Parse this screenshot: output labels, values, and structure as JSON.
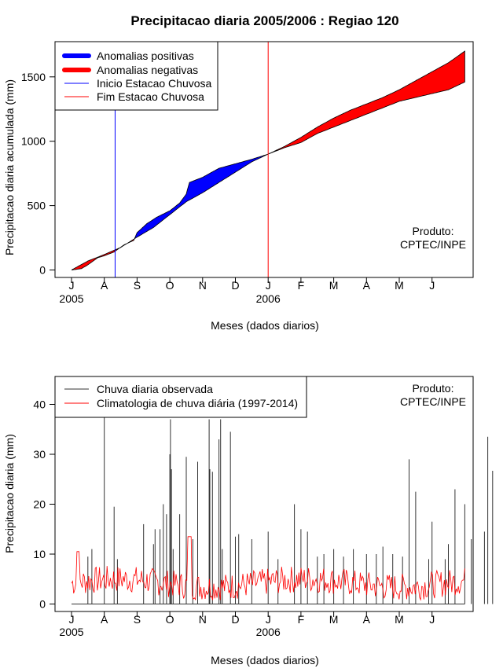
{
  "title": "Precipitacao diaria 2005/2006 : Regiao 120",
  "credit_line1": "Produto:",
  "credit_line2": "CPTEC/INPE",
  "chart_data": [
    {
      "type": "area",
      "ylabel": "Precipitacao diaria acumulada (mm)",
      "xlabel": "Meses (dados diarios)",
      "ylim": [
        0,
        1750
      ],
      "yticks": [
        0,
        500,
        1000,
        1500
      ],
      "x_tick_labels": [
        "J",
        "A",
        "S",
        "O",
        "N",
        "D",
        "J",
        "F",
        "M",
        "A",
        "M",
        "J"
      ],
      "year_labels": [
        "2005",
        "2006"
      ],
      "legend": [
        "Anomalias positivas",
        "Anomalias negativas",
        "Inicio Estacao Chuvosa",
        "Fim Estacao Chuvosa"
      ],
      "colors": {
        "positive": "#0000ff",
        "negative": "#ff0000",
        "onset": "#0000ff",
        "end": "#ff0000"
      },
      "season_onset_month": 1.33,
      "season_end_month": 6.0,
      "observed_accumulated": [
        [
          0,
          0
        ],
        [
          0.3,
          10
        ],
        [
          0.5,
          40
        ],
        [
          0.8,
          95
        ],
        [
          1.0,
          110
        ],
        [
          1.3,
          140
        ],
        [
          1.6,
          195
        ],
        [
          1.9,
          230
        ],
        [
          2.0,
          290
        ],
        [
          2.3,
          360
        ],
        [
          2.6,
          410
        ],
        [
          3.0,
          460
        ],
        [
          3.3,
          520
        ],
        [
          3.5,
          590
        ],
        [
          3.6,
          680
        ],
        [
          4.0,
          720
        ],
        [
          4.5,
          790
        ],
        [
          5.0,
          825
        ],
        [
          5.5,
          860
        ],
        [
          6.0,
          900
        ],
        [
          6.5,
          950
        ],
        [
          7.0,
          990
        ],
        [
          7.5,
          1060
        ],
        [
          8.0,
          1110
        ],
        [
          8.5,
          1160
        ],
        [
          9.0,
          1210
        ],
        [
          9.5,
          1260
        ],
        [
          10.0,
          1310
        ],
        [
          10.5,
          1340
        ],
        [
          11.0,
          1370
        ],
        [
          11.5,
          1400
        ],
        [
          12.0,
          1460
        ]
      ],
      "climatology_accumulated": [
        [
          0,
          0
        ],
        [
          0.5,
          70
        ],
        [
          1.0,
          120
        ],
        [
          1.5,
          175
        ],
        [
          2.0,
          255
        ],
        [
          2.5,
          330
        ],
        [
          3.0,
          430
        ],
        [
          3.5,
          530
        ],
        [
          4.0,
          600
        ],
        [
          4.5,
          680
        ],
        [
          5.0,
          760
        ],
        [
          5.5,
          840
        ],
        [
          6.0,
          900
        ],
        [
          6.5,
          960
        ],
        [
          7.0,
          1030
        ],
        [
          7.5,
          1110
        ],
        [
          8.0,
          1180
        ],
        [
          8.5,
          1240
        ],
        [
          9.0,
          1290
        ],
        [
          9.5,
          1340
        ],
        [
          10.0,
          1400
        ],
        [
          10.5,
          1470
        ],
        [
          11.0,
          1540
        ],
        [
          11.5,
          1610
        ],
        [
          12.0,
          1700
        ]
      ]
    },
    {
      "type": "line",
      "ylabel": "Precipitacao diaria (mm)",
      "xlabel": "Meses (dados diarios)",
      "ylim": [
        0,
        45
      ],
      "yticks": [
        0,
        10,
        20,
        30,
        40
      ],
      "x_tick_labels": [
        "J",
        "A",
        "S",
        "O",
        "N",
        "D",
        "J",
        "F",
        "M",
        "A",
        "M",
        "J"
      ],
      "year_labels": [
        "2005",
        "2006"
      ],
      "legend": [
        "Chuva diaria observada",
        "Climatologia de chuva diária (1997-2014)"
      ],
      "colors": {
        "observed": "#333333",
        "climatology": "#ff0000"
      },
      "observed_peaks": [
        [
          0.5,
          9.5
        ],
        [
          0.62,
          11
        ],
        [
          1.0,
          38
        ],
        [
          1.3,
          19.5
        ],
        [
          1.4,
          9
        ],
        [
          2.2,
          16
        ],
        [
          2.5,
          12
        ],
        [
          2.55,
          15
        ],
        [
          2.7,
          15
        ],
        [
          2.8,
          20
        ],
        [
          2.9,
          18
        ],
        [
          3.0,
          30
        ],
        [
          3.02,
          37
        ],
        [
          3.05,
          27
        ],
        [
          3.1,
          11
        ],
        [
          3.3,
          18
        ],
        [
          3.5,
          29.5
        ],
        [
          3.7,
          13
        ],
        [
          3.85,
          28.5
        ],
        [
          4.2,
          37
        ],
        [
          4.22,
          27
        ],
        [
          4.3,
          26.5
        ],
        [
          4.5,
          33
        ],
        [
          4.55,
          37
        ],
        [
          4.6,
          11
        ],
        [
          4.85,
          34.5
        ],
        [
          5.0,
          13.5
        ],
        [
          5.1,
          14
        ],
        [
          5.5,
          13
        ],
        [
          6.0,
          14.5
        ],
        [
          6.3,
          9
        ],
        [
          6.8,
          20
        ],
        [
          7.0,
          15
        ],
        [
          7.2,
          14.5
        ],
        [
          7.5,
          9.5
        ],
        [
          7.7,
          10
        ],
        [
          8.0,
          11
        ],
        [
          8.3,
          9.5
        ],
        [
          8.6,
          11
        ],
        [
          9.0,
          10
        ],
        [
          9.3,
          10
        ],
        [
          9.5,
          11.5
        ],
        [
          9.8,
          10
        ],
        [
          10.1,
          9.5
        ],
        [
          10.3,
          29
        ],
        [
          10.5,
          22.5
        ],
        [
          10.9,
          9
        ],
        [
          11.0,
          16.5
        ],
        [
          11.4,
          9
        ],
        [
          11.5,
          12
        ],
        [
          11.7,
          23
        ],
        [
          12.0,
          20
        ],
        [
          12.2,
          13
        ],
        [
          12.6,
          14.5
        ],
        [
          12.7,
          33.5
        ],
        [
          12.85,
          26.7
        ]
      ]
    }
  ]
}
